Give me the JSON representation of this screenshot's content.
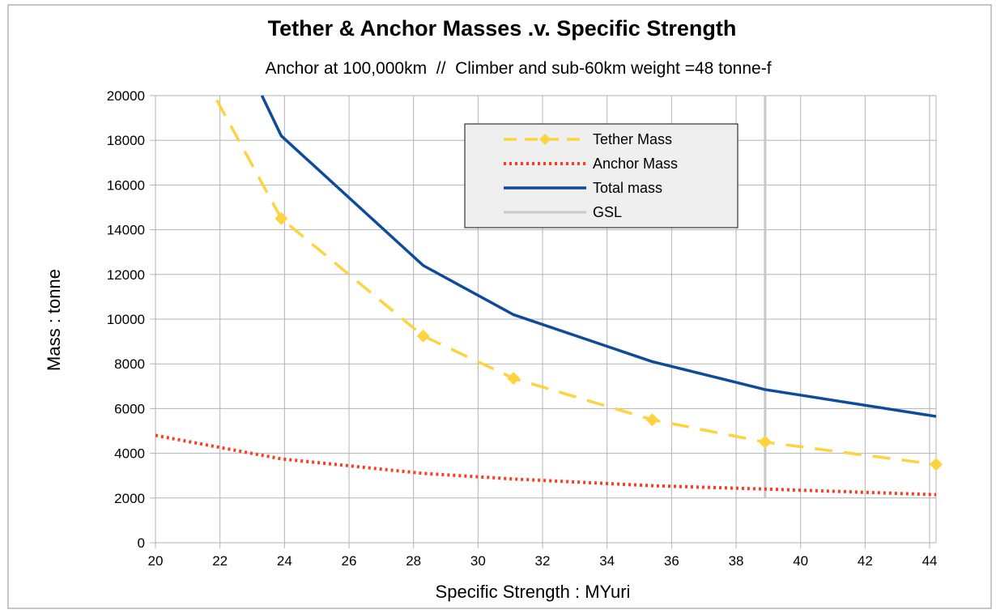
{
  "chart_data": {
    "type": "line",
    "title": "Tether & Anchor Masses .v. Specific Strength",
    "subtitle": "Anchor at 100,000km  //  Climber and sub-60km weight =48 tonne-f",
    "xlabel": "Specific Strength : MYuri",
    "ylabel": "Mass : tonne",
    "xlim": [
      20,
      44.2
    ],
    "ylim": [
      0,
      20000
    ],
    "x_ticks": [
      20,
      22,
      24,
      26,
      28,
      30,
      32,
      34,
      36,
      38,
      40,
      42,
      44
    ],
    "y_ticks": [
      0,
      2000,
      4000,
      6000,
      8000,
      10000,
      12000,
      14000,
      16000,
      18000,
      20000
    ],
    "grid": true,
    "legend_position": "top-center",
    "series": [
      {
        "name": "Tether Mass",
        "style": "dashed",
        "marker": "diamond",
        "color": "#ffd23f",
        "x": [
          21.9,
          23.9,
          28.3,
          31.1,
          35.4,
          38.9,
          44.2
        ],
        "y": [
          19800,
          14500,
          9250,
          7350,
          5500,
          4500,
          3500
        ]
      },
      {
        "name": "Anchor Mass",
        "style": "dotted",
        "color": "#ff3b1f",
        "x": [
          20,
          23.9,
          28.3,
          31.1,
          35.4,
          38.9,
          44.2
        ],
        "y": [
          4800,
          3750,
          3100,
          2850,
          2550,
          2400,
          2150
        ]
      },
      {
        "name": "Total mass",
        "style": "solid",
        "color": "#0e4b9b",
        "x": [
          23.3,
          23.9,
          28.3,
          31.1,
          35.4,
          38.9,
          44.2
        ],
        "y": [
          20000,
          18200,
          12400,
          10200,
          8100,
          6850,
          5650
        ]
      },
      {
        "name": "GSL",
        "style": "solid",
        "color": "#c8c8c8",
        "x": [
          38.9,
          38.9
        ],
        "y": [
          2000,
          20000
        ]
      }
    ]
  }
}
